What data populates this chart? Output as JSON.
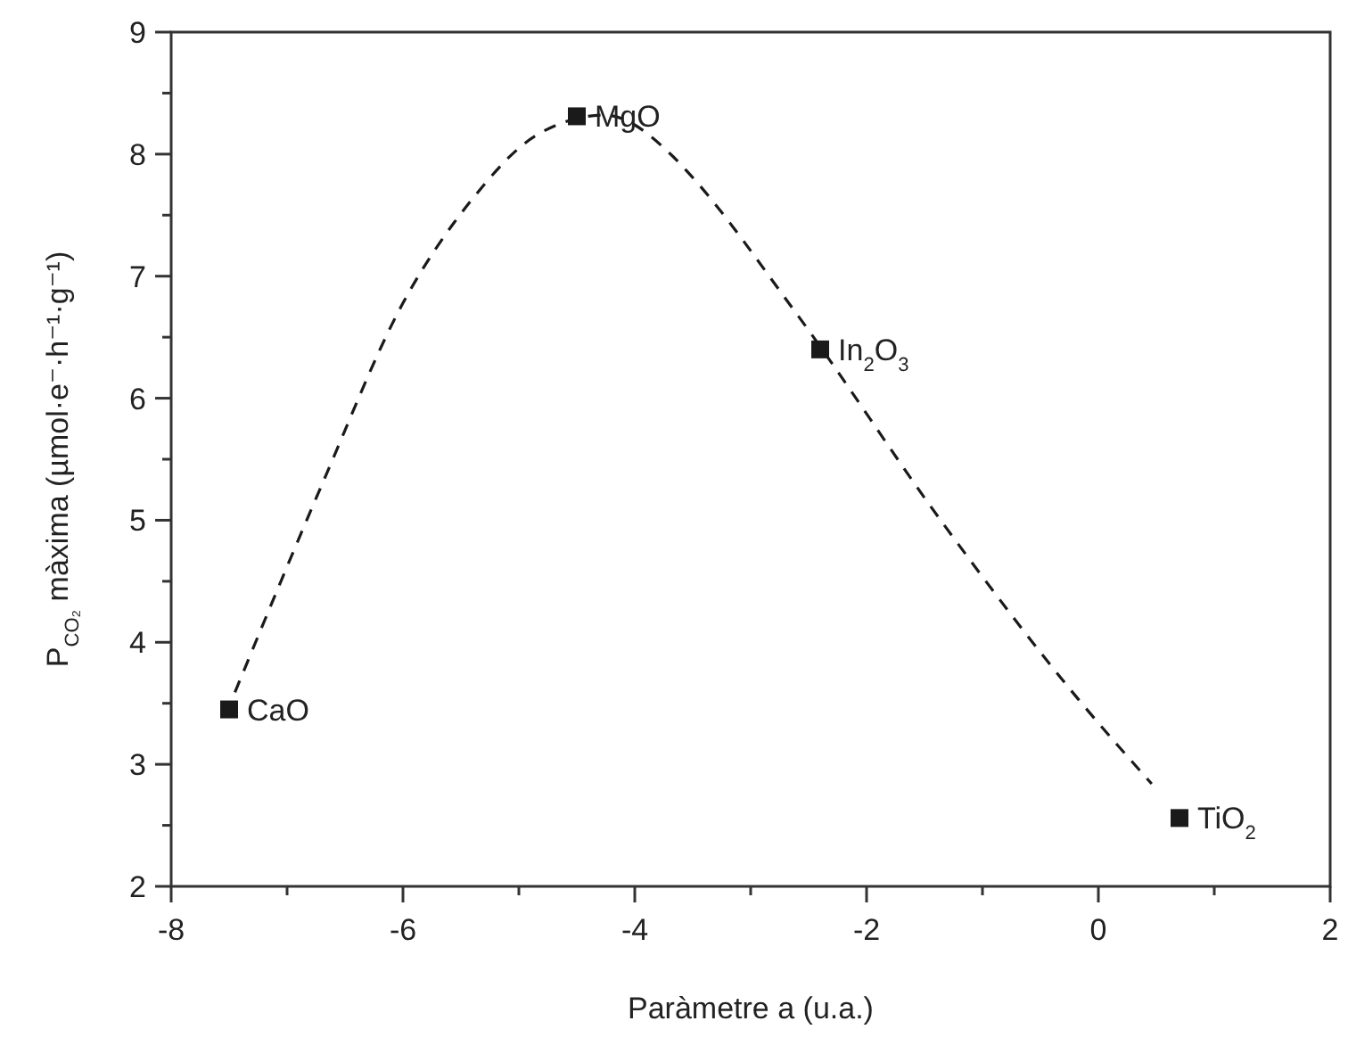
{
  "chart_data": {
    "type": "scatter",
    "xlabel": "Paràmetre a (u.a.)",
    "ylabel": "P$_{CO₂}$ màxima (µmol·e⁻·h⁻¹·g⁻¹)",
    "xlim": [
      -8,
      2
    ],
    "ylim": [
      2,
      9
    ],
    "xticks": [
      -8,
      {
        "value": -7,
        "label": null
      },
      -6,
      {
        "value": -5,
        "label": null
      },
      -4,
      {
        "value": -3,
        "label": null
      },
      -2,
      {
        "value": -1,
        "label": null
      },
      0,
      {
        "value": 1,
        "label": null
      },
      2
    ],
    "yticks": [
      2,
      {
        "value": 2.5,
        "label": null
      },
      3,
      {
        "value": 3.5,
        "label": null
      },
      4,
      {
        "value": 4.5,
        "label": null
      },
      5,
      {
        "value": 5.5,
        "label": null
      },
      6,
      {
        "value": 6.5,
        "label": null
      },
      7,
      {
        "value": 7.5,
        "label": null
      },
      8,
      {
        "value": 8.5,
        "label": null
      },
      9
    ],
    "grid": false,
    "series": [
      {
        "type": "line",
        "color": "#1a1a1a",
        "line_style": "dashed",
        "marker": "none",
        "x": [
          -7.45,
          -6.7,
          -6.0,
          -5.42,
          -4.84,
          -4.26,
          -3.68,
          -3.54,
          -2.61,
          -1.33,
          -0.17,
          0.46
        ],
        "values": [
          3.59,
          5.29,
          6.78,
          7.61,
          8.16,
          8.32,
          7.99,
          7.85,
          6.7,
          4.96,
          3.53,
          2.84
        ]
      },
      {
        "color": "#1a1a1a",
        "marker": "square",
        "x": [
          -7.5,
          -4.5,
          -2.4,
          0.7
        ],
        "values": [
          3.45,
          8.31,
          6.4,
          2.56
        ]
      }
    ],
    "annotations": [
      {
        "text": "CaO",
        "x": -7.5,
        "y": 3.45
      },
      {
        "text": "MgO",
        "x": -4.5,
        "y": 8.31
      },
      {
        "text": "In$_{2}$O$_{3}$",
        "x": -2.4,
        "y": 6.4
      },
      {
        "text": "TiO$_{2}$",
        "x": 0.7,
        "y": 2.56
      }
    ]
  }
}
